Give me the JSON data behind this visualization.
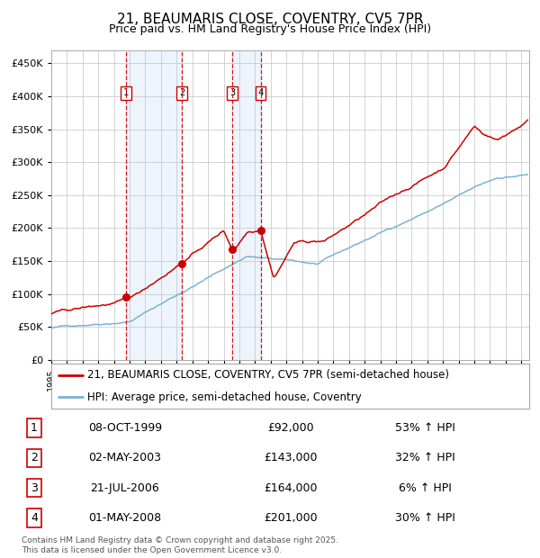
{
  "title": "21, BEAUMARIS CLOSE, COVENTRY, CV5 7PR",
  "subtitle": "Price paid vs. HM Land Registry's House Price Index (HPI)",
  "ylim": [
    0,
    470000
  ],
  "xlim_start": 1995.0,
  "xlim_end": 2025.5,
  "hpi_color": "#7ab3d4",
  "price_color": "#cc0000",
  "background_color": "#ffffff",
  "grid_color": "#cccccc",
  "transactions": [
    {
      "label": "1",
      "date_num": 1999.77,
      "price": 92000
    },
    {
      "label": "2",
      "date_num": 2003.33,
      "price": 143000
    },
    {
      "label": "3",
      "date_num": 2006.55,
      "price": 164000
    },
    {
      "label": "4",
      "date_num": 2008.37,
      "price": 201000
    }
  ],
  "table_rows": [
    {
      "num": "1",
      "date": "08-OCT-1999",
      "price": "£92,000",
      "pct": "53% ↑ HPI"
    },
    {
      "num": "2",
      "date": "02-MAY-2003",
      "price": "£143,000",
      "pct": "32% ↑ HPI"
    },
    {
      "num": "3",
      "date": "21-JUL-2006",
      "price": "£164,000",
      "pct": "6% ↑ HPI"
    },
    {
      "num": "4",
      "date": "01-MAY-2008",
      "price": "£201,000",
      "pct": "30% ↑ HPI"
    }
  ],
  "legend_entries": [
    {
      "label": "21, BEAUMARIS CLOSE, COVENTRY, CV5 7PR (semi-detached house)",
      "color": "#cc0000"
    },
    {
      "label": "HPI: Average price, semi-detached house, Coventry",
      "color": "#7ab3d4"
    }
  ],
  "footnote": "Contains HM Land Registry data © Crown copyright and database right 2025.\nThis data is licensed under the Open Government Licence v3.0."
}
